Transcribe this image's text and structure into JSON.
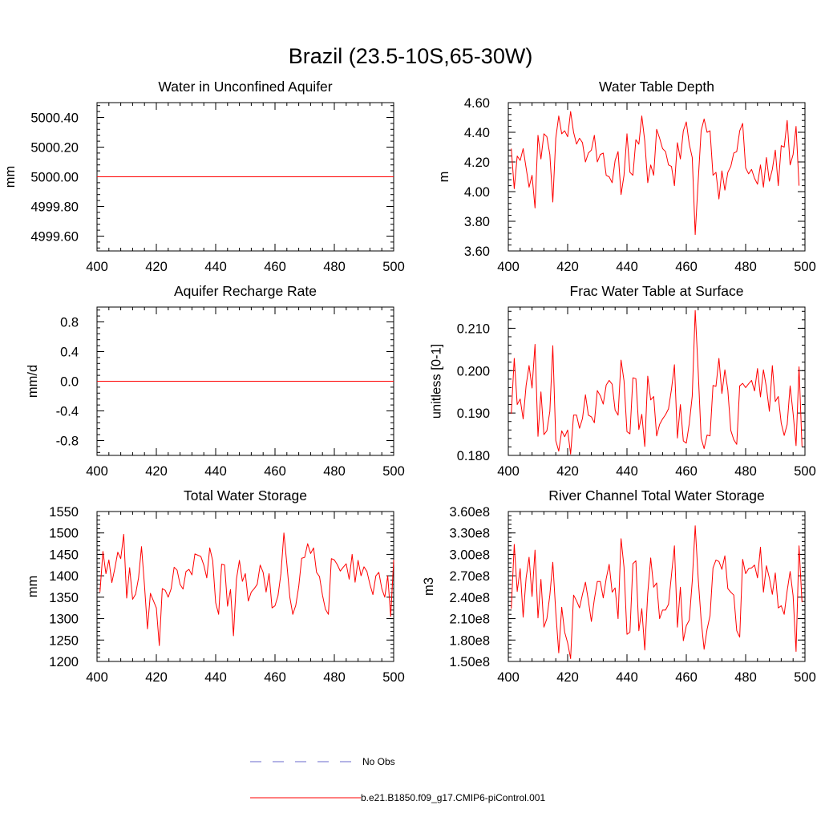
{
  "figure": {
    "title": "Brazil (23.5-10S,65-30W)"
  },
  "colors": {
    "model": "#ff0000",
    "obs": "#6a6acd",
    "axis": "#000000"
  },
  "legend": [
    {
      "label": "No Obs",
      "style": "dashed",
      "color": "#6a6acd"
    },
    {
      "label": "b.e21.B1850.f09_g17.CMIP6-piControl.001",
      "style": "solid",
      "color": "#ff0000"
    }
  ],
  "chart_data": [
    {
      "id": "aquifer-water",
      "type": "line",
      "title": "Water in Unconfined Aquifer",
      "xlabel": "",
      "ylabel": "mm",
      "xlim": [
        400,
        500
      ],
      "ylim": [
        4999.5,
        5000.5
      ],
      "xticks": [
        400,
        420,
        440,
        460,
        480,
        500
      ],
      "xtick_labels": [
        "400",
        "420",
        "440",
        "460",
        "480",
        "500"
      ],
      "yticks": [
        4999.6,
        4999.8,
        5000.0,
        5000.2,
        5000.4
      ],
      "ytick_labels": [
        "4999.60",
        "4999.80",
        "5000.00",
        "5000.20",
        "5000.40"
      ],
      "series": [
        {
          "name": "b.e21.B1850.f09_g17.CMIP6-piControl.001",
          "x_start": 400,
          "x_step": 1,
          "values": [
            5000,
            5000,
            5000,
            5000,
            5000,
            5000,
            5000,
            5000,
            5000,
            5000,
            5000,
            5000,
            5000,
            5000,
            5000,
            5000,
            5000,
            5000,
            5000,
            5000,
            5000,
            5000,
            5000,
            5000,
            5000,
            5000,
            5000,
            5000,
            5000,
            5000,
            5000,
            5000,
            5000,
            5000,
            5000,
            5000,
            5000,
            5000,
            5000,
            5000,
            5000,
            5000,
            5000,
            5000,
            5000,
            5000,
            5000,
            5000,
            5000,
            5000,
            5000,
            5000,
            5000,
            5000,
            5000,
            5000,
            5000,
            5000,
            5000,
            5000,
            5000,
            5000,
            5000,
            5000,
            5000,
            5000,
            5000,
            5000,
            5000,
            5000,
            5000,
            5000,
            5000,
            5000,
            5000,
            5000,
            5000,
            5000,
            5000,
            5000,
            5000,
            5000,
            5000,
            5000,
            5000,
            5000,
            5000,
            5000,
            5000,
            5000,
            5000,
            5000,
            5000,
            5000,
            5000,
            5000,
            5000,
            5000,
            5000,
            5000,
            5000
          ]
        }
      ]
    },
    {
      "id": "water-table-depth",
      "type": "line",
      "title": "Water Table Depth",
      "xlabel": "",
      "ylabel": "m",
      "xlim": [
        400,
        500
      ],
      "ylim": [
        3.6,
        4.6
      ],
      "xticks": [
        400,
        420,
        440,
        460,
        480,
        500
      ],
      "xtick_labels": [
        "400",
        "420",
        "440",
        "460",
        "480",
        "500"
      ],
      "yticks": [
        3.6,
        3.8,
        4.0,
        4.2,
        4.4,
        4.6
      ],
      "ytick_labels": [
        "3.60",
        "3.80",
        "4.00",
        "4.20",
        "4.40",
        "4.60"
      ],
      "series": [
        {
          "name": "b.e21.B1850.f09_g17.CMIP6-piControl.001",
          "x_start": 401,
          "x_step": 1,
          "values": [
            4.29,
            4.02,
            4.24,
            4.21,
            4.29,
            4.16,
            4.03,
            4.11,
            3.89,
            4.38,
            4.22,
            4.39,
            4.37,
            4.25,
            3.93,
            4.36,
            4.51,
            4.39,
            4.41,
            4.37,
            4.54,
            4.4,
            4.32,
            4.36,
            4.33,
            4.2,
            4.26,
            4.28,
            4.38,
            4.2,
            4.25,
            4.26,
            4.11,
            4.1,
            4.06,
            4.21,
            4.27,
            3.98,
            4.11,
            4.39,
            4.13,
            4.11,
            4.35,
            4.32,
            4.51,
            4.34,
            4.06,
            4.18,
            4.11,
            4.42,
            4.36,
            4.29,
            4.27,
            4.18,
            4.17,
            4.04,
            4.33,
            4.22,
            4.41,
            4.47,
            4.32,
            4.23,
            3.71,
            4.07,
            4.41,
            4.49,
            4.4,
            4.41,
            4.11,
            4.13,
            3.95,
            4.14,
            4.01,
            4.13,
            4.17,
            4.26,
            4.27,
            4.41,
            4.46,
            4.16,
            4.12,
            4.15,
            4.09,
            4.05,
            4.18,
            4.03,
            4.23,
            4.07,
            4.15,
            4.28,
            4.04,
            4.31,
            4.3,
            4.48,
            4.18,
            4.25,
            4.44,
            4.04
          ]
        }
      ]
    },
    {
      "id": "recharge-rate",
      "type": "line",
      "title": "Aquifer Recharge Rate",
      "xlabel": "",
      "ylabel": "mm/d",
      "xlim": [
        400,
        500
      ],
      "ylim": [
        -1.0,
        1.0
      ],
      "xticks": [
        400,
        420,
        440,
        460,
        480,
        500
      ],
      "xtick_labels": [
        "400",
        "420",
        "440",
        "460",
        "480",
        "500"
      ],
      "yticks": [
        -0.8,
        -0.4,
        0.0,
        0.4,
        0.8
      ],
      "ytick_labels": [
        "-0.8",
        "-0.4",
        "0.0",
        "0.4",
        "0.8"
      ],
      "series": [
        {
          "name": "b.e21.B1850.f09_g17.CMIP6-piControl.001",
          "x_start": 400,
          "x_step": 1,
          "values": [
            0,
            0,
            0,
            0,
            0,
            0,
            0,
            0,
            0,
            0,
            0,
            0,
            0,
            0,
            0,
            0,
            0,
            0,
            0,
            0,
            0,
            0,
            0,
            0,
            0,
            0,
            0,
            0,
            0,
            0,
            0,
            0,
            0,
            0,
            0,
            0,
            0,
            0,
            0,
            0,
            0,
            0,
            0,
            0,
            0,
            0,
            0,
            0,
            0,
            0,
            0,
            0,
            0,
            0,
            0,
            0,
            0,
            0,
            0,
            0,
            0,
            0,
            0,
            0,
            0,
            0,
            0,
            0,
            0,
            0,
            0,
            0,
            0,
            0,
            0,
            0,
            0,
            0,
            0,
            0,
            0,
            0,
            0,
            0,
            0,
            0,
            0,
            0,
            0,
            0,
            0,
            0,
            0,
            0,
            0,
            0,
            0,
            0,
            0,
            0,
            0
          ]
        }
      ]
    },
    {
      "id": "frac-water-table",
      "type": "line",
      "title": "Frac Water Table at Surface",
      "xlabel": "",
      "ylabel": "unitless [0-1]",
      "xlim": [
        400,
        500
      ],
      "ylim": [
        0.18,
        0.215
      ],
      "xticks": [
        400,
        420,
        440,
        460,
        480,
        500
      ],
      "xtick_labels": [
        "400",
        "420",
        "440",
        "460",
        "480",
        "500"
      ],
      "yticks": [
        0.18,
        0.19,
        0.2,
        0.21
      ],
      "ytick_labels": [
        "0.180",
        "0.190",
        "0.200",
        "0.210"
      ],
      "series": [
        {
          "name": "b.e21.B1850.f09_g17.CMIP6-piControl.001",
          "x_start": 401,
          "x_step": 1,
          "values": [
            0.1898,
            0.2029,
            0.192,
            0.1933,
            0.1886,
            0.1965,
            0.2012,
            0.1959,
            0.2062,
            0.1845,
            0.195,
            0.1849,
            0.1858,
            0.1904,
            0.2059,
            0.1835,
            0.181,
            0.1858,
            0.1844,
            0.186,
            0.1803,
            0.1895,
            0.1895,
            0.1864,
            0.1887,
            0.1943,
            0.1895,
            0.1891,
            0.1877,
            0.1953,
            0.1941,
            0.1921,
            0.1966,
            0.1977,
            0.1968,
            0.1907,
            0.1895,
            0.2025,
            0.1976,
            0.1856,
            0.1851,
            0.1983,
            0.1981,
            0.1861,
            0.1897,
            0.1821,
            0.1987,
            0.1931,
            0.1939,
            0.1846,
            0.1873,
            0.1886,
            0.1896,
            0.191,
            0.1956,
            0.2014,
            0.1841,
            0.192,
            0.1834,
            0.1829,
            0.1875,
            0.194,
            0.2142,
            0.2,
            0.1841,
            0.1816,
            0.1848,
            0.1846,
            0.1965,
            0.1963,
            0.2029,
            0.1946,
            0.2002,
            0.1954,
            0.1859,
            0.1837,
            0.1826,
            0.1964,
            0.197,
            0.196,
            0.1969,
            0.1977,
            0.1952,
            0.2005,
            0.1938,
            0.2002,
            0.1961,
            0.1904,
            0.2012,
            0.1927,
            0.1939,
            0.1876,
            0.1847,
            0.1873,
            0.1964,
            0.1899,
            0.1823,
            0.2009,
            0.1821
          ]
        }
      ]
    },
    {
      "id": "total-water-storage",
      "type": "line",
      "title": "Total Water Storage",
      "xlabel": "",
      "ylabel": "mm",
      "xlim": [
        400,
        500
      ],
      "ylim": [
        1200,
        1550
      ],
      "xticks": [
        400,
        420,
        440,
        460,
        480,
        500
      ],
      "xtick_labels": [
        "400",
        "420",
        "440",
        "460",
        "480",
        "500"
      ],
      "yticks": [
        1200,
        1250,
        1300,
        1350,
        1400,
        1450,
        1500,
        1550
      ],
      "ytick_labels": [
        "1200",
        "1250",
        "1300",
        "1350",
        "1400",
        "1450",
        "1500",
        "1550"
      ],
      "series": [
        {
          "name": "b.e21.B1850.f09_g17.CMIP6-piControl.001",
          "x_start": 401,
          "x_step": 1,
          "values": [
            1362,
            1457,
            1405,
            1437,
            1384,
            1417,
            1455,
            1440,
            1497,
            1348,
            1419,
            1345,
            1357,
            1395,
            1468,
            1378,
            1276,
            1359,
            1342,
            1325,
            1237,
            1370,
            1366,
            1350,
            1370,
            1420,
            1413,
            1380,
            1369,
            1410,
            1415,
            1402,
            1451,
            1448,
            1445,
            1425,
            1395,
            1465,
            1435,
            1337,
            1310,
            1427,
            1425,
            1329,
            1368,
            1260,
            1392,
            1436,
            1387,
            1405,
            1341,
            1362,
            1370,
            1380,
            1425,
            1408,
            1362,
            1405,
            1325,
            1330,
            1353,
            1405,
            1500,
            1427,
            1350,
            1310,
            1331,
            1375,
            1441,
            1443,
            1475,
            1452,
            1465,
            1408,
            1398,
            1355,
            1322,
            1310,
            1440,
            1437,
            1426,
            1411,
            1420,
            1428,
            1392,
            1450,
            1385,
            1436,
            1400,
            1421,
            1410,
            1380,
            1356,
            1400,
            1408,
            1370,
            1350,
            1400,
            1305,
            1437
          ]
        }
      ]
    },
    {
      "id": "river-storage",
      "type": "line",
      "title": "River Channel Total Water Storage",
      "xlabel": "",
      "ylabel": "m3",
      "xlim": [
        400,
        500
      ],
      "ylim": [
        150000000.0,
        360000000.0
      ],
      "xticks": [
        400,
        420,
        440,
        460,
        480,
        500
      ],
      "xtick_labels": [
        "400",
        "420",
        "440",
        "460",
        "480",
        "500"
      ],
      "yticks": [
        150000000.0,
        180000000.0,
        210000000.0,
        240000000.0,
        270000000.0,
        300000000.0,
        330000000.0,
        360000000.0
      ],
      "ytick_labels": [
        "1.50e8",
        "1.80e8",
        "2.10e8",
        "2.40e8",
        "2.70e8",
        "3.00e8",
        "3.30e8",
        "3.60e8"
      ],
      "series": [
        {
          "name": "b.e21.B1850.f09_g17.CMIP6-piControl.001",
          "x_start": 401,
          "x_step": 1,
          "values": [
            224000000.0,
            314000000.0,
            248000000.0,
            280000000.0,
            212000000.0,
            267000000.0,
            296000000.0,
            241000000.0,
            306000000.0,
            211000000.0,
            265000000.0,
            198000000.0,
            210000000.0,
            243000000.0,
            289000000.0,
            219000000.0,
            162000000.0,
            226000000.0,
            191000000.0,
            176000000.0,
            154000000.0,
            243000000.0,
            235000000.0,
            225000000.0,
            244000000.0,
            261000000.0,
            235000000.0,
            206000000.0,
            237000000.0,
            262000000.0,
            262000000.0,
            239000000.0,
            266000000.0,
            286000000.0,
            247000000.0,
            253000000.0,
            210000000.0,
            322000000.0,
            282000000.0,
            188000000.0,
            191000000.0,
            287000000.0,
            291000000.0,
            193000000.0,
            224000000.0,
            166000000.0,
            245000000.0,
            295000000.0,
            254000000.0,
            260000000.0,
            210000000.0,
            222000000.0,
            222000000.0,
            230000000.0,
            271000000.0,
            312000000.0,
            198000000.0,
            254000000.0,
            179000000.0,
            200000000.0,
            208000000.0,
            262000000.0,
            340000000.0,
            267000000.0,
            208000000.0,
            167000000.0,
            195000000.0,
            214000000.0,
            281000000.0,
            292000000.0,
            290000000.0,
            279000000.0,
            298000000.0,
            252000000.0,
            247000000.0,
            243000000.0,
            193000000.0,
            184000000.0,
            293000000.0,
            273000000.0,
            280000000.0,
            281000000.0,
            285000000.0,
            267000000.0,
            310000000.0,
            247000000.0,
            284000000.0,
            267000000.0,
            244000000.0,
            274000000.0,
            225000000.0,
            228000000.0,
            216000000.0,
            249000000.0,
            276000000.0,
            242000000.0,
            164000000.0,
            312000000.0,
            233000000.0
          ]
        }
      ]
    }
  ]
}
